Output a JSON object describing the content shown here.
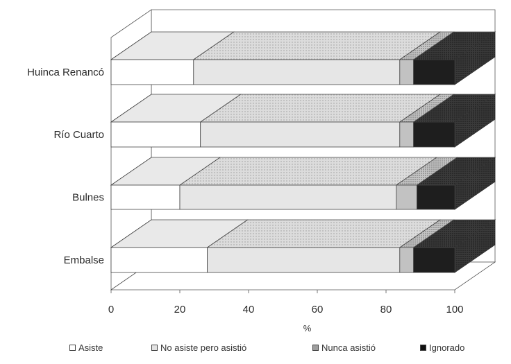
{
  "chart_data": {
    "type": "bar",
    "orientation": "horizontal",
    "stacked": true,
    "style": "3d",
    "categories": [
      "Huinca Renancó",
      "Río Cuarto",
      "Bulnes",
      "Embalse"
    ],
    "series": [
      {
        "name": "Asiste",
        "values": [
          24,
          26,
          20,
          28
        ],
        "color": "#ffffff"
      },
      {
        "name": "No asiste pero asistió",
        "values": [
          60,
          58,
          63,
          56
        ],
        "color": "#dedede"
      },
      {
        "name": "Nunca asistió",
        "values": [
          4,
          4,
          6,
          4
        ],
        "color": "#b8b8b8"
      },
      {
        "name": "Ignorado",
        "values": [
          12,
          12,
          11,
          12
        ],
        "color": "#1e1e1e"
      }
    ],
    "xlabel": "%",
    "xlim": [
      0,
      100
    ],
    "xticks": [
      "0",
      "20",
      "40",
      "60",
      "80",
      "100"
    ],
    "grid": false,
    "legend_position": "bottom"
  }
}
